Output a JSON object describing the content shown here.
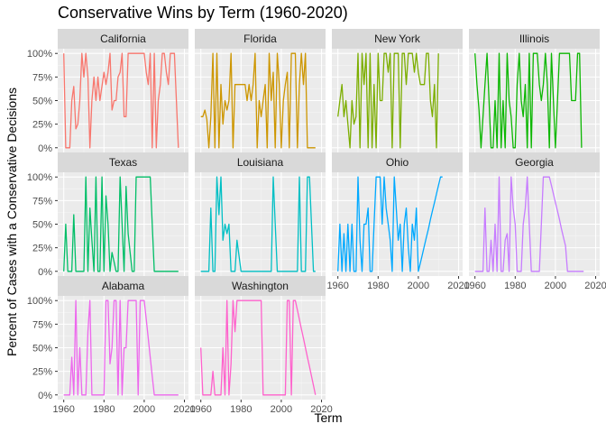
{
  "chart_data": {
    "type": "line",
    "title": "Conservative Wins by Term (1960-2020)",
    "xlabel": "Term",
    "ylabel": "Percent of Cases with a Conservative Decisions",
    "xlim": [
      1957,
      2022
    ],
    "ylim": [
      -0.05,
      1.05
    ],
    "x_ticks": [
      1960,
      1980,
      2000,
      2020
    ],
    "x_tick_labels": [
      "1960",
      "1980",
      "2000",
      "2020"
    ],
    "y_ticks": [
      0,
      0.25,
      0.5,
      0.75,
      1
    ],
    "y_tick_labels": [
      "0%",
      "25%",
      "50%",
      "75%",
      "100%"
    ],
    "facet_columns": 4,
    "legend": "none",
    "grid": true,
    "panel_background": "#ebebeb",
    "strip_background": "#d9d9d9",
    "series": [
      {
        "name": "California",
        "color": "#F8766D",
        "x": [
          1960,
          1961,
          1962,
          1963,
          1964,
          1965,
          1966,
          1967,
          1968,
          1969,
          1970,
          1971,
          1972,
          1973,
          1974,
          1975,
          1976,
          1977,
          1978,
          1980,
          1981,
          1982,
          1983,
          1984,
          1985,
          1986,
          1987,
          1988,
          1989,
          1990,
          1991,
          1992,
          1993,
          1994,
          1995,
          1996,
          1997,
          1998,
          1999,
          2000,
          2001,
          2002,
          2003,
          2004,
          2005,
          2006,
          2007,
          2008,
          2009,
          2010,
          2011,
          2012,
          2013,
          2014,
          2015,
          2016,
          2017
        ],
        "y": [
          1,
          0,
          0,
          0,
          0.5,
          0.65,
          0.2,
          0.25,
          0.5,
          1,
          0.75,
          1,
          0.75,
          0,
          0.5,
          0.75,
          0.5,
          0.75,
          0.5,
          0.8,
          0.67,
          0.8,
          1,
          0.4,
          0.5,
          0.5,
          0.75,
          0.8,
          1,
          0.33,
          0.33,
          1,
          1,
          1,
          1,
          1,
          1,
          1,
          1,
          1,
          0.8,
          0.67,
          1,
          0,
          1,
          0,
          0.5,
          0.67,
          1,
          1,
          0.8,
          0.67,
          1,
          1,
          1,
          0.5,
          0
        ]
      },
      {
        "name": "Florida",
        "color": "#CD9600",
        "x": [
          1960,
          1961,
          1962,
          1963,
          1964,
          1965,
          1966,
          1967,
          1968,
          1969,
          1970,
          1971,
          1972,
          1973,
          1974,
          1975,
          1976,
          1977,
          1978,
          1980,
          1981,
          1982,
          1983,
          1984,
          1985,
          1986,
          1987,
          1988,
          1989,
          1990,
          1991,
          1992,
          1993,
          1994,
          1995,
          1996,
          1997,
          1998,
          1999,
          2000,
          2001,
          2002,
          2003,
          2004,
          2005,
          2006,
          2007,
          2008,
          2009,
          2010,
          2011,
          2012,
          2013,
          2014,
          2015,
          2016,
          2017
        ],
        "y": [
          0.33,
          0.33,
          0.4,
          0.3,
          0,
          0.33,
          1,
          0,
          1,
          0,
          0.67,
          0.25,
          0.5,
          0.4,
          0.5,
          1,
          0,
          0.67,
          0.67,
          0.67,
          0.67,
          0.67,
          0.5,
          0.67,
          0.5,
          0.67,
          1,
          0,
          0.5,
          0.33,
          0.5,
          0.67,
          0,
          1,
          0.5,
          0.8,
          0,
          1,
          0.67,
          0,
          0.5,
          0.67,
          0.8,
          0,
          1,
          1,
          1,
          0,
          0.67,
          1,
          0.67,
          1,
          0,
          0,
          0,
          0,
          0
        ]
      },
      {
        "name": "New York",
        "color": "#7CAE00",
        "x": [
          1960,
          1961,
          1962,
          1963,
          1964,
          1965,
          1966,
          1967,
          1968,
          1969,
          1970,
          1971,
          1972,
          1973,
          1974,
          1975,
          1976,
          1977,
          1978,
          1979,
          1980,
          1981,
          1982,
          1983,
          1984,
          1985,
          1986,
          1987,
          1988,
          1989,
          1990,
          1991,
          1992,
          1993,
          1994,
          1995,
          1996,
          1997,
          1998,
          1999,
          2000,
          2001,
          2002,
          2003,
          2004,
          2005,
          2006,
          2007,
          2008,
          2009,
          2010
        ],
        "y": [
          0.33,
          0.5,
          0.67,
          0.33,
          0.5,
          0.25,
          0,
          0.5,
          0.25,
          0.33,
          1,
          0,
          1,
          0.67,
          1,
          0,
          1,
          0,
          0.67,
          0,
          1,
          0.5,
          0.5,
          1,
          1,
          0.8,
          1,
          0,
          1,
          1,
          1,
          0,
          1,
          1,
          0.67,
          1,
          1,
          1,
          0.8,
          1,
          0.8,
          0.67,
          0.67,
          0.67,
          1,
          1,
          0.5,
          0.33,
          0.67,
          0,
          1
        ]
      },
      {
        "name": "Illinois",
        "color": "#0CB702",
        "x": [
          1960,
          1961,
          1962,
          1963,
          1964,
          1965,
          1966,
          1967,
          1968,
          1969,
          1970,
          1971,
          1972,
          1973,
          1974,
          1975,
          1976,
          1977,
          1978,
          1979,
          1980,
          1981,
          1982,
          1983,
          1984,
          1985,
          1986,
          1987,
          1988,
          1989,
          1990,
          1991,
          1992,
          1993,
          1994,
          1995,
          1996,
          1997,
          1998,
          1999,
          2000,
          2001,
          2002,
          2003,
          2004,
          2005,
          2006,
          2007,
          2008,
          2009,
          2010,
          2011,
          2012,
          2013
        ],
        "y": [
          1,
          0.67,
          0.4,
          0,
          0.33,
          0.67,
          1,
          0.5,
          0,
          0,
          0.5,
          0,
          1,
          0,
          0.5,
          0,
          1,
          0.5,
          0.33,
          0,
          0,
          0.67,
          1,
          0.5,
          0.33,
          0.67,
          0,
          1,
          0,
          1,
          1,
          1,
          0.67,
          0.5,
          0.67,
          1,
          0.67,
          0,
          1,
          0.5,
          0,
          0.5,
          1,
          1,
          1,
          1,
          1,
          1,
          0.5,
          0.5,
          0.5,
          1,
          1,
          0
        ]
      },
      {
        "name": "Texas",
        "color": "#00BE67",
        "x": [
          1960,
          1961,
          1962,
          1963,
          1964,
          1965,
          1966,
          1967,
          1968,
          1969,
          1970,
          1971,
          1972,
          1973,
          1974,
          1975,
          1976,
          1977,
          1978,
          1979,
          1980,
          1981,
          1982,
          1983,
          1984,
          1985,
          1986,
          1987,
          1988,
          1989,
          1990,
          1991,
          1992,
          1993,
          1994,
          1995,
          1996,
          1997,
          1998,
          1999,
          2000,
          2001,
          2002,
          2003,
          2004,
          2005,
          2006,
          2007,
          2008,
          2009,
          2010,
          2011,
          2012,
          2013,
          2014,
          2015,
          2016,
          2017
        ],
        "y": [
          0,
          0.5,
          0,
          0,
          0,
          0.6,
          0,
          0,
          0,
          0,
          0,
          1,
          0,
          0.67,
          0.33,
          0,
          1,
          0,
          0,
          1,
          0,
          0.8,
          0.5,
          0,
          0.2,
          0.1,
          0,
          0,
          1,
          0.5,
          0,
          0.9,
          0.4,
          0.2,
          0,
          0,
          1,
          1,
          1,
          1,
          1,
          1,
          1,
          1,
          0.5,
          0,
          0,
          0,
          0,
          0,
          0,
          0,
          0,
          0,
          0,
          0,
          0,
          0
        ]
      },
      {
        "name": "Louisiana",
        "color": "#00BFC4",
        "x": [
          1960,
          1961,
          1962,
          1963,
          1964,
          1965,
          1966,
          1967,
          1968,
          1969,
          1970,
          1971,
          1972,
          1973,
          1974,
          1975,
          1976,
          1977,
          1978,
          1980,
          1981,
          1982,
          1983,
          1984,
          1985,
          1986,
          1987,
          1988,
          1989,
          1990,
          1991,
          1992,
          1993,
          1994,
          1995,
          1996,
          1997,
          1998,
          1999,
          2000,
          2001,
          2002,
          2003,
          2004,
          2005,
          2006,
          2007,
          2008,
          2009,
          2010,
          2011,
          2012,
          2013,
          2014,
          2015,
          2016,
          2017
        ],
        "y": [
          0,
          0,
          0,
          0,
          0,
          0.67,
          0,
          0,
          1,
          0.6,
          1,
          0.33,
          0.5,
          0.4,
          0.5,
          0,
          0,
          0,
          0.33,
          0,
          0,
          0,
          0,
          0,
          0,
          0,
          0,
          0,
          0,
          0,
          0,
          0,
          0,
          0,
          0,
          1,
          0.5,
          0,
          0,
          0,
          0,
          0,
          0,
          0,
          0,
          0,
          0,
          0,
          1,
          0,
          0,
          0,
          1,
          1,
          0.5,
          0,
          0
        ]
      },
      {
        "name": "Ohio",
        "color": "#00A9FF",
        "x": [
          1960,
          1961,
          1962,
          1963,
          1964,
          1965,
          1966,
          1967,
          1968,
          1969,
          1970,
          1971,
          1972,
          1973,
          1974,
          1975,
          1976,
          1977,
          1978,
          1979,
          1980,
          1981,
          1982,
          1983,
          1984,
          1985,
          1986,
          1987,
          1988,
          1989,
          1990,
          1991,
          1992,
          1993,
          1994,
          1995,
          1996,
          1997,
          1998,
          1999,
          2000,
          2001,
          2002,
          2003,
          2004,
          2005,
          2006,
          2007,
          2008,
          2009,
          2010,
          2011,
          2012
        ],
        "y": [
          0,
          0.5,
          0,
          0.4,
          0,
          0.5,
          0,
          0.5,
          0,
          0,
          1,
          0.33,
          0,
          0.5,
          0.5,
          0.67,
          0,
          0,
          0.5,
          1,
          1,
          1,
          0.5,
          1,
          0.67,
          0.5,
          0.33,
          0,
          1,
          0.67,
          0.33,
          0.5,
          0,
          0.5,
          0.67,
          0.25,
          0,
          0.5,
          0.33,
          0.67,
          0,
          0.09,
          0.18,
          0.27,
          0.36,
          0.45,
          0.55,
          0.64,
          0.73,
          0.82,
          0.91,
          1,
          1
        ]
      },
      {
        "name": "Georgia",
        "color": "#C77CFF",
        "x": [
          1960,
          1961,
          1962,
          1963,
          1964,
          1965,
          1966,
          1967,
          1968,
          1969,
          1970,
          1971,
          1972,
          1973,
          1974,
          1975,
          1976,
          1977,
          1978,
          1979,
          1980,
          1981,
          1982,
          1983,
          1984,
          1985,
          1986,
          1987,
          1988,
          1989,
          1990,
          1991,
          1992,
          1993,
          1994,
          1995,
          1996,
          1997,
          1998,
          1999,
          2000,
          2001,
          2002,
          2003,
          2004,
          2005,
          2006,
          2007,
          2008,
          2009,
          2010,
          2011,
          2012,
          2013,
          2014
        ],
        "y": [
          0,
          0,
          0,
          0,
          0,
          0.67,
          0,
          0,
          0.33,
          0,
          0.5,
          0,
          1,
          0,
          0,
          0.33,
          0.4,
          0,
          1,
          0.67,
          0.5,
          0,
          0,
          0,
          0.5,
          0.67,
          1,
          0.5,
          0,
          0,
          0,
          0,
          0,
          0.5,
          1,
          1,
          1,
          1,
          0.91,
          0.82,
          0.73,
          0.64,
          0.55,
          0.45,
          0.36,
          0.27,
          0,
          0,
          0,
          0,
          0,
          0,
          0,
          0,
          0
        ]
      },
      {
        "name": "Alabama",
        "color": "#ED68ED",
        "x": [
          1960,
          1961,
          1962,
          1963,
          1964,
          1965,
          1966,
          1967,
          1968,
          1969,
          1970,
          1971,
          1972,
          1973,
          1974,
          1975,
          1976,
          1977,
          1978,
          1979,
          1980,
          1981,
          1982,
          1983,
          1984,
          1985,
          1986,
          1987,
          1988,
          1989,
          1990,
          1991,
          1992,
          1993,
          1994,
          1995,
          1996,
          1997,
          1998,
          1999,
          2000,
          2001,
          2002,
          2003,
          2004,
          2005,
          2006,
          2007,
          2008,
          2009,
          2010,
          2011,
          2012,
          2013,
          2014,
          2015,
          2016,
          2017
        ],
        "y": [
          0,
          0,
          0,
          0,
          0.4,
          0,
          1,
          0,
          0.5,
          0,
          0,
          0,
          0.67,
          1,
          0,
          0,
          0,
          0,
          0,
          0,
          0,
          1,
          1,
          0.33,
          0.5,
          1,
          1,
          0,
          1,
          0,
          0.5,
          0.5,
          1,
          1,
          1,
          1,
          1,
          0,
          1,
          1,
          1,
          0.8,
          0.6,
          0.4,
          0.2,
          0,
          0,
          0,
          0,
          0,
          0,
          0,
          0,
          0,
          0,
          0,
          0,
          0
        ]
      },
      {
        "name": "Washington",
        "color": "#FF61CC",
        "x": [
          1960,
          1961,
          1962,
          1963,
          1964,
          1965,
          1966,
          1967,
          1968,
          1969,
          1970,
          1971,
          1972,
          1973,
          1974,
          1975,
          1976,
          1977,
          1978,
          1979,
          1980,
          1981,
          1982,
          1983,
          1984,
          1985,
          1986,
          1987,
          1988,
          1989,
          1990,
          1991,
          1992,
          1993,
          1994,
          1995,
          1996,
          1997,
          1998,
          1999,
          2000,
          2001,
          2002,
          2003,
          2004,
          2005,
          2006,
          2007,
          2008,
          2009,
          2010,
          2011,
          2012,
          2013,
          2014,
          2015,
          2016,
          2017
        ],
        "y": [
          0.5,
          0,
          0,
          0,
          0,
          0,
          0.25,
          0,
          0,
          0,
          0,
          0.5,
          0,
          1,
          0,
          0.33,
          1,
          0.67,
          1,
          1,
          1,
          1,
          1,
          1,
          1,
          1,
          1,
          1,
          1,
          1,
          1,
          0,
          0,
          0,
          0,
          0,
          0,
          0,
          0,
          0,
          0,
          0,
          0,
          1,
          1,
          0,
          1,
          1,
          0.9,
          0.8,
          0.7,
          0.6,
          0.5,
          0.4,
          0.3,
          0.2,
          0.1,
          0
        ]
      }
    ]
  }
}
